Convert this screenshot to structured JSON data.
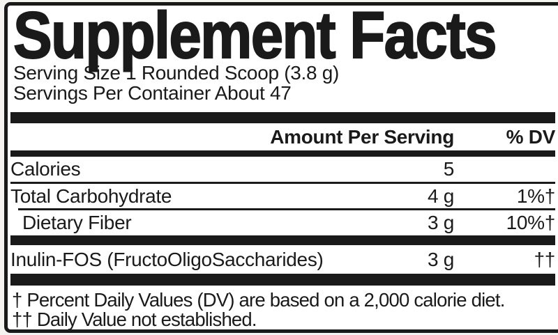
{
  "label": {
    "title": "Supplement Facts",
    "serving_size": "Serving Size 1 Rounded Scoop (3.8 g)",
    "servings_per_container": "Servings Per Container About 47",
    "columns": {
      "amount_header": "Amount Per Serving",
      "dv_header": "% DV"
    },
    "rows": [
      {
        "name": "Calories",
        "amount": "5",
        "dv": ""
      },
      {
        "name": "Total Carbohydrate",
        "amount": "4 g",
        "dv": "1%†"
      },
      {
        "name": "Dietary Fiber",
        "amount": "3 g",
        "dv": "10%†"
      },
      {
        "name": "Inulin-FOS (FructoOligoSaccharides)",
        "amount": "3 g",
        "dv": "††"
      }
    ],
    "footnotes": [
      "† Percent Daily Values (DV) are based on a 2,000 calorie diet.",
      "†† Daily Value not established."
    ],
    "colors": {
      "ink": "#1a1a1a",
      "label_bg": "#ffffff",
      "page_bg": "#f6f4f1"
    }
  }
}
